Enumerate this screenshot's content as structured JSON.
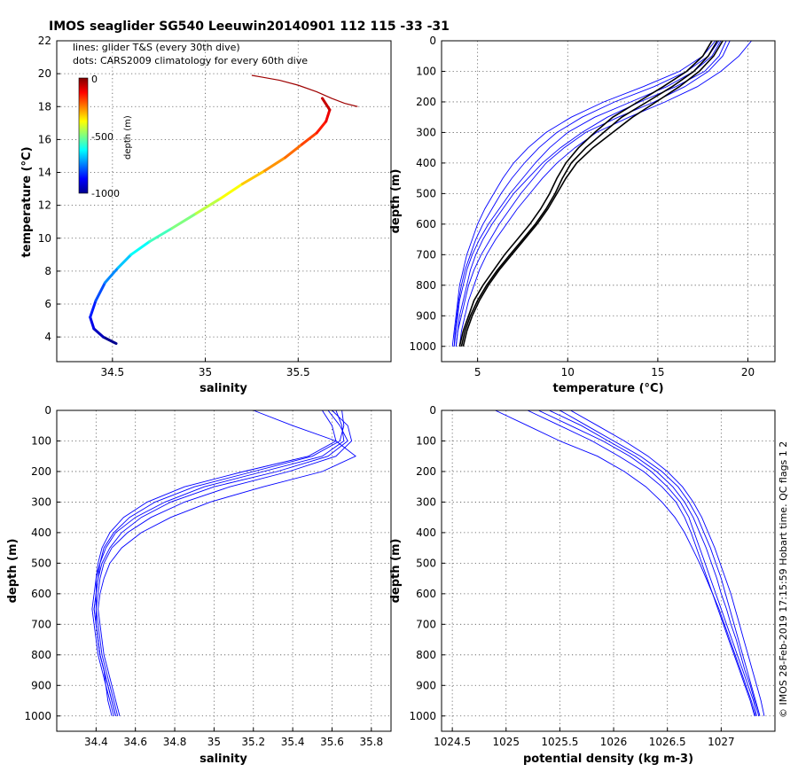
{
  "figure": {
    "title": "IMOS seaglider SG540 Leeuwin20140901 112  115  -33  -31",
    "footer": "© IMOS 28-Feb-2019 17:15:59 Hobart time. QC flags 1  2"
  },
  "colors": {
    "profile_line": "#0000ff",
    "climatology_line": "#000000",
    "colormap": [
      "#00008f",
      "#0000ff",
      "#0080ff",
      "#00ffff",
      "#80ff80",
      "#ffff00",
      "#ff8000",
      "#ff0000",
      "#800000"
    ]
  },
  "chart_data": [
    {
      "id": "ts",
      "type": "scatter",
      "title": "",
      "xlabel": "salinity",
      "ylabel": "temperature (°C)",
      "xlim": [
        34.2,
        36.0
      ],
      "ylim": [
        2.5,
        22
      ],
      "xticks": [
        34.5,
        35,
        35.5
      ],
      "xtick_labels": [
        "34.5",
        "35",
        "35.5"
      ],
      "yticks": [
        4,
        6,
        8,
        10,
        12,
        14,
        16,
        18,
        20,
        22
      ],
      "ytick_labels": [
        "4",
        "6",
        "8",
        "10",
        "12",
        "14",
        "16",
        "18",
        "20",
        "22"
      ],
      "grid": true,
      "annotations": [
        "lines: glider T&S (every 30th dive)",
        "dots: CARS2009 climatology for every 60th dive"
      ],
      "colorbar": {
        "label": "depth (m)",
        "range": [
          -1000,
          0
        ],
        "ticks": [
          "0",
          "-500",
          "-1000"
        ]
      },
      "series": [
        {
          "salinity": [
            34.52,
            34.45,
            34.4,
            34.38,
            34.41,
            34.46,
            34.53,
            34.6,
            34.7,
            34.82,
            34.95,
            35.08,
            35.2,
            35.32,
            35.43,
            35.52,
            35.6,
            35.65,
            35.67,
            35.63
          ],
          "depth": [
            -1000,
            -950,
            -900,
            -850,
            -800,
            -740,
            -680,
            -620,
            -560,
            -500,
            -440,
            -380,
            -320,
            -270,
            -230,
            -190,
            -150,
            -110,
            -70,
            -30
          ],
          "temperature": [
            3.6,
            4.0,
            4.5,
            5.2,
            6.2,
            7.3,
            8.2,
            9.0,
            9.8,
            10.6,
            11.5,
            12.4,
            13.3,
            14.1,
            14.9,
            15.7,
            16.4,
            17.1,
            17.8,
            18.5
          ]
        }
      ],
      "near_surface_salinity": [
        35.25,
        35.3,
        35.4,
        35.5,
        35.6,
        35.68,
        35.75,
        35.82
      ],
      "near_surface_temperature": [
        19.9,
        19.8,
        19.6,
        19.3,
        18.9,
        18.5,
        18.2,
        18.0
      ]
    },
    {
      "id": "temp_depth",
      "type": "line",
      "title": "",
      "xlabel": "temperature (°C)",
      "ylabel": "depth (m)",
      "xlim": [
        3,
        21.5
      ],
      "ylim": [
        1050,
        0
      ],
      "xticks": [
        5,
        10,
        15,
        20
      ],
      "xtick_labels": [
        "5",
        "10",
        "15",
        "20"
      ],
      "yticks": [
        0,
        100,
        200,
        300,
        400,
        500,
        600,
        700,
        800,
        900,
        1000
      ],
      "ytick_labels": [
        "0",
        "100",
        "200",
        "300",
        "400",
        "500",
        "600",
        "700",
        "800",
        "900",
        "1000"
      ],
      "grid": true,
      "depth": [
        0,
        50,
        100,
        150,
        200,
        250,
        300,
        350,
        400,
        450,
        500,
        550,
        600,
        650,
        700,
        750,
        800,
        850,
        900,
        950,
        1000
      ],
      "series": [
        {
          "name": "",
          "values": [
            18.5,
            18.0,
            17.0,
            15.5,
            13.5,
            11.5,
            10.0,
            9.0,
            8.2,
            7.5,
            6.8,
            6.2,
            5.6,
            5.1,
            4.7,
            4.4,
            4.2,
            4.0,
            3.9,
            3.8,
            3.7
          ]
        },
        {
          "name": "",
          "values": [
            19.0,
            18.6,
            17.8,
            16.5,
            14.8,
            12.8,
            11.0,
            9.8,
            8.8,
            8.1,
            7.4,
            6.8,
            6.2,
            5.7,
            5.2,
            4.8,
            4.5,
            4.3,
            4.1,
            3.9,
            3.8
          ]
        },
        {
          "name": "",
          "values": [
            18.2,
            17.5,
            16.2,
            14.2,
            12.0,
            10.2,
            8.8,
            7.8,
            7.0,
            6.4,
            5.9,
            5.4,
            5.0,
            4.7,
            4.4,
            4.2,
            4.0,
            3.9,
            3.8,
            3.7,
            3.6
          ]
        },
        {
          "name": "",
          "values": [
            20.2,
            19.5,
            18.5,
            17.2,
            15.4,
            13.4,
            11.6,
            10.4,
            9.4,
            8.6,
            7.9,
            7.2,
            6.6,
            6.0,
            5.5,
            5.1,
            4.8,
            4.5,
            4.3,
            4.1,
            4.0
          ]
        },
        {
          "name": "",
          "values": [
            18.8,
            18.4,
            17.6,
            16.0,
            14.0,
            12.2,
            10.8,
            9.6,
            8.6,
            7.8,
            7.0,
            6.4,
            5.8,
            5.3,
            4.9,
            4.6,
            4.4,
            4.2,
            4.0,
            3.9,
            3.8
          ]
        },
        {
          "name": "",
          "values": [
            18.4,
            17.8,
            16.6,
            14.8,
            12.6,
            10.8,
            9.4,
            8.4,
            7.6,
            6.9,
            6.3,
            5.8,
            5.3,
            4.9,
            4.6,
            4.3,
            4.1,
            3.95,
            3.85,
            3.75,
            3.7
          ]
        }
      ],
      "climatology": [
        {
          "name": "",
          "values": [
            18.3,
            17.8,
            17.0,
            15.8,
            14.4,
            13.0,
            12.0,
            11.0,
            10.2,
            9.7,
            9.3,
            8.8,
            8.2,
            7.5,
            6.8,
            6.1,
            5.5,
            5.0,
            4.6,
            4.3,
            4.1
          ]
        },
        {
          "name": "",
          "values": [
            18.6,
            18.1,
            17.3,
            16.2,
            14.9,
            13.6,
            12.5,
            11.4,
            10.5,
            9.9,
            9.4,
            8.9,
            8.3,
            7.6,
            6.9,
            6.2,
            5.6,
            5.1,
            4.7,
            4.4,
            4.2
          ]
        },
        {
          "name": "",
          "values": [
            18.0,
            17.5,
            16.6,
            15.3,
            13.9,
            12.5,
            11.5,
            10.6,
            9.9,
            9.4,
            9.0,
            8.5,
            7.9,
            7.2,
            6.5,
            5.9,
            5.3,
            4.8,
            4.5,
            4.2,
            4.0
          ]
        }
      ]
    },
    {
      "id": "salinity_depth",
      "type": "line",
      "title": "",
      "xlabel": "salinity",
      "ylabel": "depth (m)",
      "xlim": [
        34.2,
        35.9
      ],
      "ylim": [
        1050,
        0
      ],
      "xticks": [
        34.4,
        34.6,
        34.8,
        35,
        35.2,
        35.4,
        35.6,
        35.8
      ],
      "xtick_labels": [
        "34.4",
        "34.6",
        "34.8",
        "35",
        "35.2",
        "35.4",
        "35.6",
        "35.8"
      ],
      "yticks": [
        0,
        100,
        200,
        300,
        400,
        500,
        600,
        700,
        800,
        900,
        1000
      ],
      "ytick_labels": [
        "0",
        "100",
        "200",
        "300",
        "400",
        "500",
        "600",
        "700",
        "800",
        "900",
        "1000"
      ],
      "grid": true,
      "depth": [
        0,
        50,
        100,
        150,
        200,
        250,
        300,
        350,
        400,
        450,
        500,
        550,
        600,
        650,
        700,
        750,
        800,
        850,
        900,
        950,
        1000
      ],
      "series": [
        {
          "name": "",
          "values": [
            35.62,
            35.65,
            35.66,
            35.55,
            35.25,
            34.95,
            34.75,
            34.6,
            34.5,
            34.45,
            34.42,
            34.4,
            34.4,
            34.39,
            34.4,
            34.41,
            34.42,
            34.44,
            34.46,
            34.48,
            34.5
          ]
        },
        {
          "name": "",
          "values": [
            35.6,
            35.68,
            35.7,
            35.62,
            35.38,
            35.08,
            34.85,
            34.68,
            34.56,
            34.48,
            34.44,
            34.42,
            34.41,
            34.4,
            34.41,
            34.42,
            34.43,
            34.45,
            34.47,
            34.49,
            34.51
          ]
        },
        {
          "name": "",
          "values": [
            35.55,
            35.6,
            35.62,
            35.48,
            35.15,
            34.85,
            34.66,
            34.54,
            34.47,
            34.43,
            34.41,
            34.4,
            34.39,
            34.38,
            34.39,
            34.4,
            34.41,
            34.43,
            34.45,
            34.46,
            34.48
          ]
        },
        {
          "name": "",
          "values": [
            35.2,
            35.4,
            35.62,
            35.72,
            35.55,
            35.25,
            34.98,
            34.78,
            34.63,
            34.53,
            34.47,
            34.44,
            34.42,
            34.41,
            34.42,
            34.43,
            34.44,
            34.46,
            34.48,
            34.5,
            34.52
          ]
        },
        {
          "name": "",
          "values": [
            35.65,
            35.66,
            35.64,
            35.5,
            35.2,
            34.9,
            34.7,
            34.57,
            34.49,
            34.44,
            34.42,
            34.41,
            34.4,
            34.4,
            34.4,
            34.41,
            34.42,
            34.44,
            34.45,
            34.47,
            34.49
          ]
        },
        {
          "name": "",
          "values": [
            35.58,
            35.64,
            35.68,
            35.58,
            35.32,
            35.0,
            34.78,
            34.63,
            34.53,
            34.47,
            34.43,
            34.41,
            34.4,
            34.39,
            34.4,
            34.41,
            34.42,
            34.44,
            34.46,
            34.48,
            34.5
          ]
        }
      ]
    },
    {
      "id": "density_depth",
      "type": "line",
      "title": "",
      "xlabel": "potential density (kg m-3)",
      "ylabel": "depth (m)",
      "xlim": [
        1024.4,
        1027.5
      ],
      "ylim": [
        1050,
        0
      ],
      "xticks": [
        1024.5,
        1025,
        1025.5,
        1026,
        1026.5,
        1027
      ],
      "xtick_labels": [
        "1024.5",
        "1025",
        "1025.5",
        "1026",
        "1026.5",
        "1027"
      ],
      "yticks": [
        0,
        100,
        200,
        300,
        400,
        500,
        600,
        700,
        800,
        900,
        1000
      ],
      "ytick_labels": [
        "0",
        "100",
        "200",
        "300",
        "400",
        "500",
        "600",
        "700",
        "800",
        "900",
        "1000"
      ],
      "grid": true,
      "depth": [
        0,
        50,
        100,
        150,
        200,
        250,
        300,
        350,
        400,
        450,
        500,
        550,
        600,
        650,
        700,
        750,
        800,
        850,
        900,
        950,
        1000
      ],
      "series": [
        {
          "name": "",
          "values": [
            1025.3,
            1025.6,
            1025.9,
            1026.15,
            1026.35,
            1026.5,
            1026.62,
            1026.7,
            1026.75,
            1026.8,
            1026.85,
            1026.9,
            1026.95,
            1027.0,
            1027.05,
            1027.1,
            1027.15,
            1027.2,
            1027.25,
            1027.3,
            1027.33
          ]
        },
        {
          "name": "",
          "values": [
            1025.5,
            1025.75,
            1026.0,
            1026.25,
            1026.45,
            1026.6,
            1026.7,
            1026.78,
            1026.84,
            1026.9,
            1026.95,
            1027.0,
            1027.04,
            1027.08,
            1027.12,
            1027.16,
            1027.2,
            1027.24,
            1027.28,
            1027.32,
            1027.36
          ]
        },
        {
          "name": "",
          "values": [
            1025.2,
            1025.5,
            1025.8,
            1026.05,
            1026.28,
            1026.45,
            1026.58,
            1026.66,
            1026.72,
            1026.77,
            1026.82,
            1026.87,
            1026.92,
            1026.97,
            1027.02,
            1027.07,
            1027.12,
            1027.17,
            1027.22,
            1027.27,
            1027.31
          ]
        },
        {
          "name": "",
          "values": [
            1024.9,
            1025.2,
            1025.5,
            1025.85,
            1026.1,
            1026.3,
            1026.45,
            1026.57,
            1026.66,
            1026.73,
            1026.8,
            1026.86,
            1026.92,
            1026.98,
            1027.03,
            1027.08,
            1027.13,
            1027.18,
            1027.23,
            1027.28,
            1027.32
          ]
        },
        {
          "name": "",
          "values": [
            1025.6,
            1025.85,
            1026.1,
            1026.32,
            1026.5,
            1026.64,
            1026.74,
            1026.82,
            1026.88,
            1026.94,
            1026.99,
            1027.04,
            1027.09,
            1027.13,
            1027.17,
            1027.21,
            1027.25,
            1027.29,
            1027.33,
            1027.37,
            1027.4
          ]
        },
        {
          "name": "",
          "values": [
            1025.4,
            1025.7,
            1025.95,
            1026.2,
            1026.4,
            1026.55,
            1026.66,
            1026.74,
            1026.8,
            1026.86,
            1026.91,
            1026.96,
            1027.0,
            1027.05,
            1027.09,
            1027.14,
            1027.18,
            1027.22,
            1027.27,
            1027.31,
            1027.35
          ]
        }
      ]
    }
  ]
}
